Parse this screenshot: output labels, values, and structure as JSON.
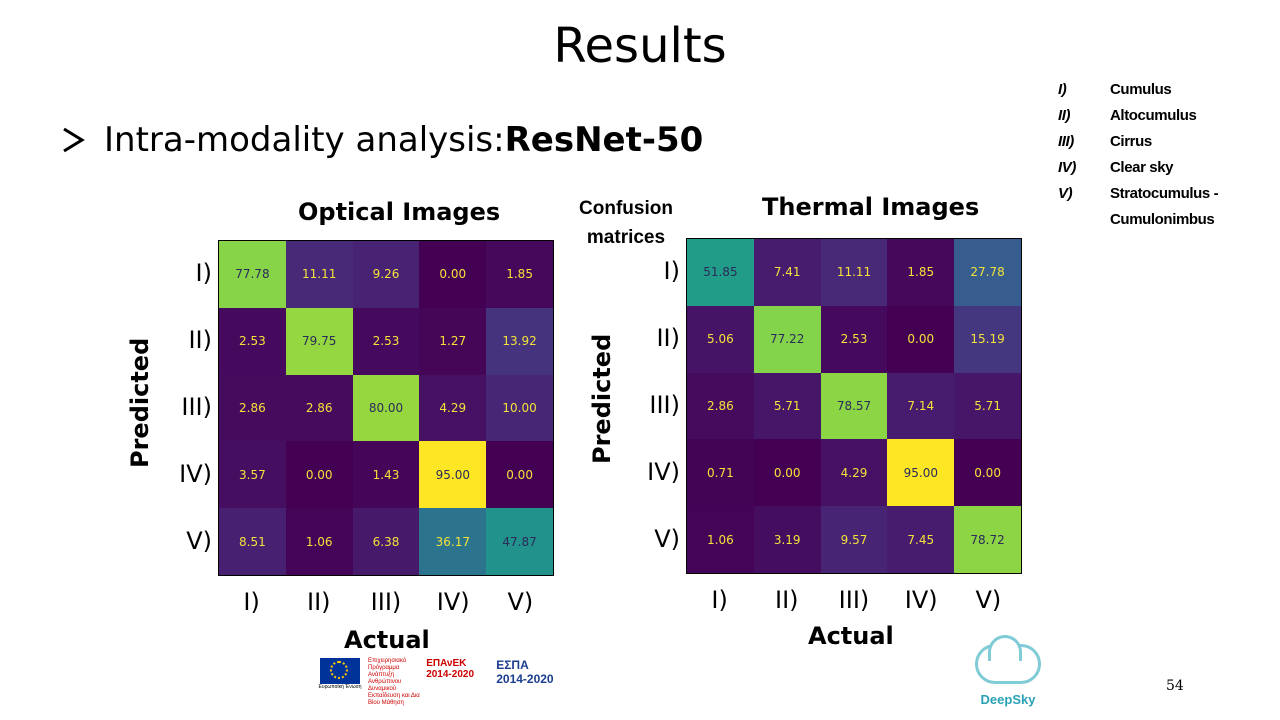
{
  "slide": {
    "title": "Results",
    "bullet_prefix": "Intra-modality analysis: ",
    "bullet_bold": "ResNet-50",
    "note": "Confusion matrices",
    "page_number": "54"
  },
  "legend": [
    {
      "num": "I)",
      "label": "Cumulus"
    },
    {
      "num": "II)",
      "label": "Altocumulus"
    },
    {
      "num": "III)",
      "label": "Cirrus"
    },
    {
      "num": "IV)",
      "label": "Clear sky"
    },
    {
      "num": "V)",
      "label": "Stratocumulus -"
    },
    {
      "num": "",
      "label": "Cumulonimbus"
    }
  ],
  "logos": {
    "eu_text": "Ευρωπαϊκή Ένωση",
    "fund_text": "Επιχειρησιακό Πρόγραμμα Ανάπτυξη Ανθρώπινου Δυναμικού Εκπαίδευση και Δια Βίου Μάθηση",
    "epanek": "ΕΠΑνΕΚ 2014-2020",
    "espa": "ΕΣΠΑ 2014-2020",
    "deepsky": "DeepSky"
  },
  "colors": {
    "viridis_low": "#440154",
    "viridis_high": "#fde725"
  },
  "chart_data": [
    {
      "type": "heatmap",
      "title": "Optical Images",
      "xlabel": "Actual",
      "ylabel": "Predicted",
      "x_categories": [
        "I)",
        "II)",
        "III)",
        "IV)",
        "V)"
      ],
      "y_categories": [
        "I)",
        "II)",
        "III)",
        "IV)",
        "V)"
      ],
      "values": [
        [
          77.78,
          11.11,
          9.26,
          0.0,
          1.85
        ],
        [
          2.53,
          79.75,
          2.53,
          1.27,
          13.92
        ],
        [
          2.86,
          2.86,
          80.0,
          4.29,
          10.0
        ],
        [
          3.57,
          0.0,
          1.43,
          95.0,
          0.0
        ],
        [
          8.51,
          1.06,
          6.38,
          36.17,
          47.87
        ]
      ]
    },
    {
      "type": "heatmap",
      "title": "Thermal Images",
      "xlabel": "Actual",
      "ylabel": "Predicted",
      "x_categories": [
        "I)",
        "II)",
        "III)",
        "IV)",
        "V)"
      ],
      "y_categories": [
        "I)",
        "II)",
        "III)",
        "IV)",
        "V)"
      ],
      "values": [
        [
          51.85,
          7.41,
          11.11,
          1.85,
          27.78
        ],
        [
          5.06,
          77.22,
          2.53,
          0.0,
          15.19
        ],
        [
          2.86,
          5.71,
          78.57,
          7.14,
          5.71
        ],
        [
          0.71,
          0.0,
          4.29,
          95.0,
          0.0
        ],
        [
          1.06,
          3.19,
          9.57,
          7.45,
          78.72
        ]
      ]
    }
  ]
}
